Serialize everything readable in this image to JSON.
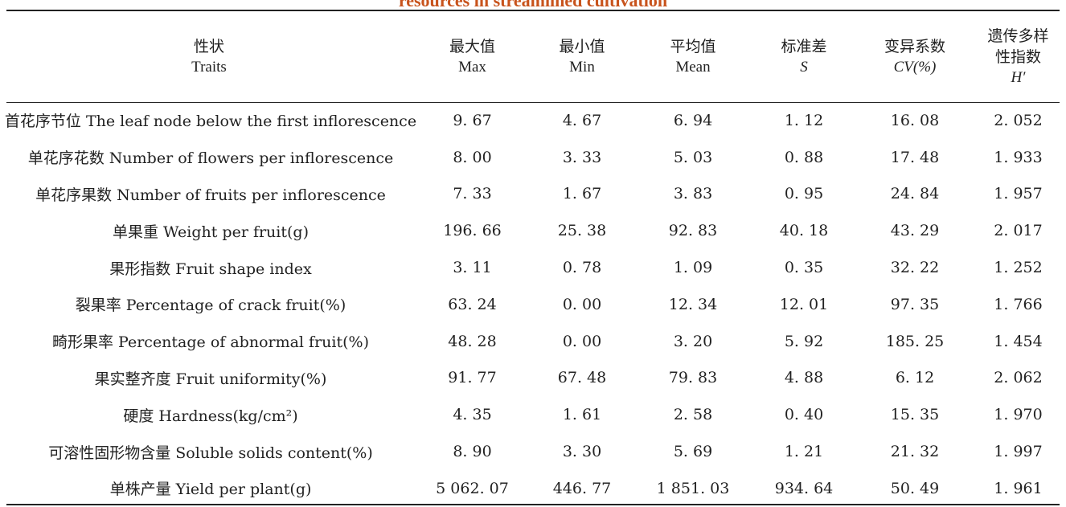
{
  "caption": "resources in streamlined cultivation",
  "columns": [
    {
      "zh": "性状",
      "en": "Traits"
    },
    {
      "zh": "最大值",
      "en": "Max"
    },
    {
      "zh": "最小值",
      "en": "Min"
    },
    {
      "zh": "平均值",
      "en": "Mean"
    },
    {
      "zh": "标准差",
      "en": "S"
    },
    {
      "zh": "变异系数",
      "en": "CV(%)"
    },
    {
      "zh": "遗传多样性指数",
      "en": "H′"
    }
  ],
  "rows": [
    {
      "trait": "首花序节位 The leaf node below the first inflorescence",
      "max": "9. 67",
      "min": "4. 67",
      "mean": "6. 94",
      "s": "1. 12",
      "cv": "16. 08",
      "h": "2. 052"
    },
    {
      "trait": "单花序花数 Number of flowers per inflorescence",
      "max": "8. 00",
      "min": "3. 33",
      "mean": "5. 03",
      "s": "0. 88",
      "cv": "17. 48",
      "h": "1. 933"
    },
    {
      "trait": "单花序果数 Number of fruits per inflorescence",
      "max": "7. 33",
      "min": "1. 67",
      "mean": "3. 83",
      "s": "0. 95",
      "cv": "24. 84",
      "h": "1. 957"
    },
    {
      "trait": "单果重 Weight per fruit(g)",
      "max": "196. 66",
      "min": "25. 38",
      "mean": "92. 83",
      "s": "40. 18",
      "cv": "43. 29",
      "h": "2. 017"
    },
    {
      "trait": "果形指数 Fruit shape index",
      "max": "3. 11",
      "min": "0. 78",
      "mean": "1. 09",
      "s": "0. 35",
      "cv": "32. 22",
      "h": "1. 252"
    },
    {
      "trait": "裂果率 Percentage of crack fruit(%)",
      "max": "63. 24",
      "min": "0. 00",
      "mean": "12. 34",
      "s": "12. 01",
      "cv": "97. 35",
      "h": "1. 766"
    },
    {
      "trait": "畸形果率 Percentage of abnormal fruit(%)",
      "max": "48. 28",
      "min": "0. 00",
      "mean": "3. 20",
      "s": "5. 92",
      "cv": "185. 25",
      "h": "1. 454"
    },
    {
      "trait": "果实整齐度 Fruit uniformity(%)",
      "max": "91. 77",
      "min": "67. 48",
      "mean": "79. 83",
      "s": "4. 88",
      "cv": "6. 12",
      "h": "2. 062"
    },
    {
      "trait": "硬度 Hardness(kg/cm²)",
      "max": "4. 35",
      "min": "1. 61",
      "mean": "2. 58",
      "s": "0. 40",
      "cv": "15. 35",
      "h": "1. 970"
    },
    {
      "trait": "可溶性固形物含量 Soluble solids content(%)",
      "max": "8. 90",
      "min": "3. 30",
      "mean": "5. 69",
      "s": "1. 21",
      "cv": "21. 32",
      "h": "1. 997"
    },
    {
      "trait": "单株产量 Yield per plant(g)",
      "max": "5 062. 07",
      "min": "446. 77",
      "mean": "1 851. 03",
      "s": "934. 64",
      "cv": "50. 49",
      "h": "1. 961"
    }
  ]
}
